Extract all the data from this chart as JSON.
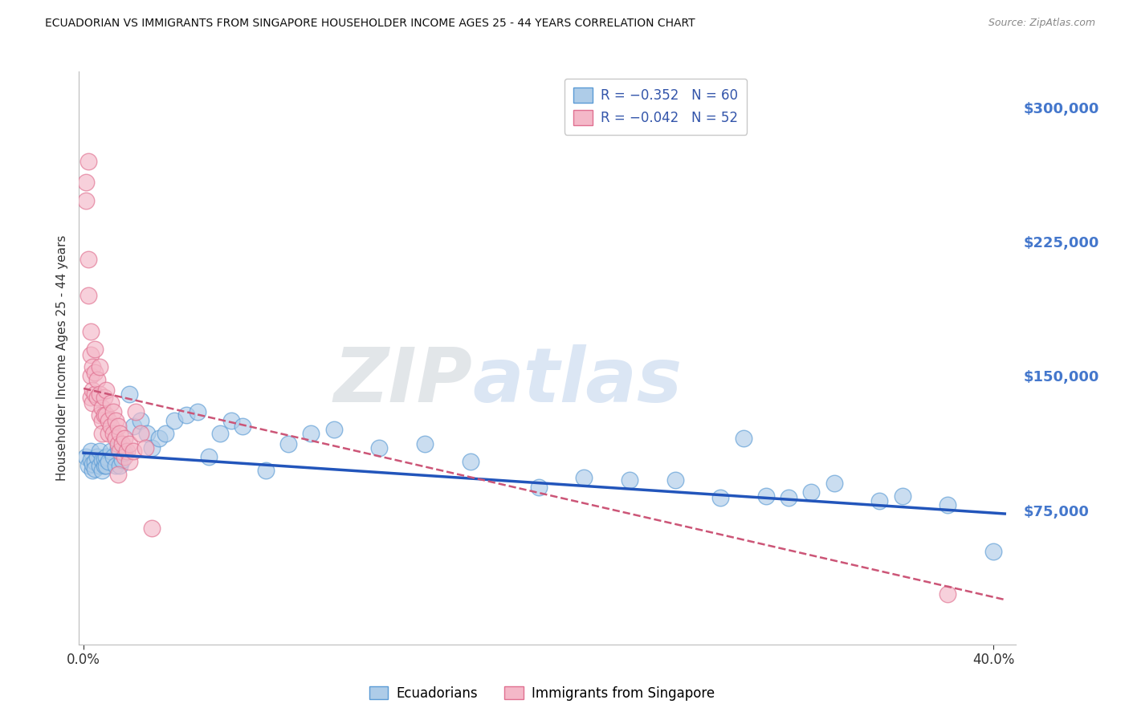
{
  "title": "ECUADORIAN VS IMMIGRANTS FROM SINGAPORE HOUSEHOLDER INCOME AGES 25 - 44 YEARS CORRELATION CHART",
  "source": "Source: ZipAtlas.com",
  "ylabel": "Householder Income Ages 25 - 44 years",
  "right_ytick_labels": [
    "$300,000",
    "$225,000",
    "$150,000",
    "$75,000"
  ],
  "right_ytick_values": [
    300000,
    225000,
    150000,
    75000
  ],
  "ylim": [
    0,
    320000
  ],
  "xlim": [
    -0.002,
    0.41
  ],
  "watermark_zip": "ZIP",
  "watermark_atlas": "atlas",
  "legend_entry_blue": "R = −0.352   N = 60",
  "legend_entry_pink": "R = −0.042   N = 52",
  "legend_labels_bottom": [
    "Ecuadorians",
    "Immigrants from Singapore"
  ],
  "blue_fill": "#aecce8",
  "blue_edge": "#5b9bd5",
  "pink_fill": "#f4b8c8",
  "pink_edge": "#e07090",
  "blue_line_color": "#2255bb",
  "pink_line_color": "#cc5577",
  "background_color": "#ffffff",
  "grid_color": "#cccccc",
  "right_axis_color": "#4477cc",
  "blue_scatter_x": [
    0.001,
    0.002,
    0.003,
    0.003,
    0.004,
    0.004,
    0.005,
    0.005,
    0.006,
    0.007,
    0.007,
    0.008,
    0.008,
    0.009,
    0.009,
    0.01,
    0.01,
    0.011,
    0.012,
    0.013,
    0.014,
    0.015,
    0.016,
    0.017,
    0.018,
    0.02,
    0.022,
    0.025,
    0.028,
    0.03,
    0.033,
    0.036,
    0.04,
    0.045,
    0.05,
    0.055,
    0.06,
    0.065,
    0.07,
    0.08,
    0.09,
    0.1,
    0.11,
    0.13,
    0.15,
    0.17,
    0.2,
    0.22,
    0.24,
    0.26,
    0.28,
    0.29,
    0.3,
    0.31,
    0.32,
    0.33,
    0.35,
    0.36,
    0.38,
    0.4
  ],
  "blue_scatter_y": [
    105000,
    100000,
    108000,
    103000,
    97000,
    101000,
    102000,
    98000,
    105000,
    108000,
    100000,
    103000,
    97000,
    100000,
    104000,
    105000,
    100000,
    102000,
    108000,
    105000,
    100000,
    110000,
    100000,
    103000,
    107000,
    140000,
    122000,
    125000,
    118000,
    110000,
    115000,
    118000,
    125000,
    128000,
    130000,
    105000,
    118000,
    125000,
    122000,
    97000,
    112000,
    118000,
    120000,
    110000,
    112000,
    102000,
    88000,
    93000,
    92000,
    92000,
    82000,
    115000,
    83000,
    82000,
    85000,
    90000,
    80000,
    83000,
    78000,
    52000
  ],
  "pink_scatter_x": [
    0.001,
    0.001,
    0.002,
    0.002,
    0.002,
    0.003,
    0.003,
    0.003,
    0.003,
    0.004,
    0.004,
    0.004,
    0.005,
    0.005,
    0.005,
    0.006,
    0.006,
    0.007,
    0.007,
    0.007,
    0.008,
    0.008,
    0.008,
    0.009,
    0.009,
    0.01,
    0.01,
    0.011,
    0.011,
    0.012,
    0.012,
    0.013,
    0.013,
    0.014,
    0.014,
    0.015,
    0.015,
    0.016,
    0.016,
    0.017,
    0.018,
    0.018,
    0.019,
    0.02,
    0.02,
    0.022,
    0.023,
    0.025,
    0.027,
    0.03,
    0.015,
    0.38
  ],
  "pink_scatter_y": [
    258000,
    248000,
    270000,
    215000,
    195000,
    175000,
    162000,
    150000,
    138000,
    155000,
    142000,
    135000,
    165000,
    152000,
    140000,
    148000,
    138000,
    155000,
    140000,
    128000,
    132000,
    125000,
    118000,
    138000,
    128000,
    142000,
    128000,
    125000,
    118000,
    135000,
    122000,
    130000,
    118000,
    125000,
    115000,
    122000,
    112000,
    118000,
    108000,
    112000,
    115000,
    105000,
    108000,
    112000,
    102000,
    108000,
    130000,
    118000,
    110000,
    65000,
    95000,
    28000
  ],
  "blue_trend_x": [
    0.0,
    0.405
  ],
  "blue_trend_y": [
    107000,
    73000
  ],
  "pink_trend_x": [
    0.0,
    0.405
  ],
  "pink_trend_y": [
    143000,
    25000
  ]
}
